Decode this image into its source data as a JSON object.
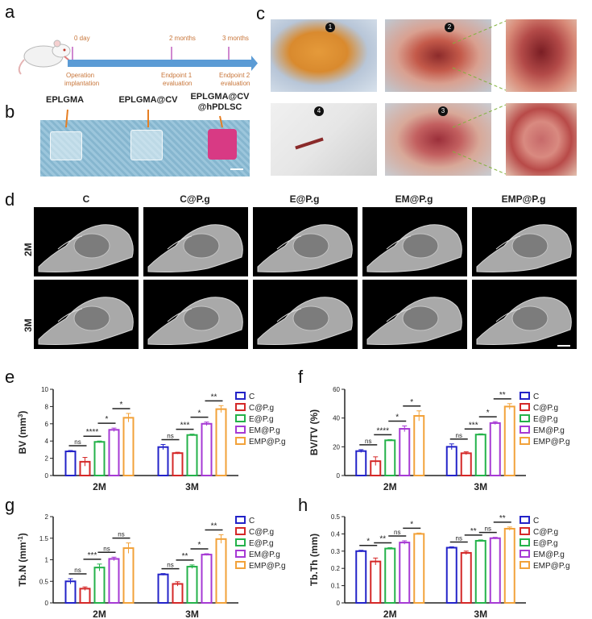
{
  "panel_letters": [
    "a",
    "b",
    "c",
    "d",
    "e",
    "f",
    "g",
    "h"
  ],
  "timeline": {
    "ticks": [
      {
        "label": "0 day",
        "events": [
          "Operation",
          "implantation"
        ]
      },
      {
        "label": "2 months",
        "events": [
          "Endpoint 1",
          "evaluation"
        ]
      },
      {
        "label": "3 months",
        "events": [
          "Endpoint 2",
          "evaluation"
        ]
      }
    ],
    "color": "#5b9bd5",
    "text_color": "#c8763a"
  },
  "hydrogels": {
    "labels": [
      "EPLGMA",
      "EPLGMA@CV",
      "EPLGMA@CV\n@hPDLSC"
    ]
  },
  "surgery_photos": {
    "markers": [
      "1",
      "2",
      "3",
      "4"
    ]
  },
  "microct": {
    "columns": [
      "C",
      "C@P.g",
      "E@P.g",
      "EM@P.g",
      "EMP@P.g"
    ],
    "rows": [
      "2M",
      "3M"
    ]
  },
  "legend": {
    "entries": [
      "C",
      "C@P.g",
      "E@P.g",
      "EM@P.g",
      "EMP@P.g"
    ],
    "colors": [
      "#2323c8",
      "#d42828",
      "#24b24a",
      "#a63ad4",
      "#f2a23a"
    ]
  },
  "chart_data": [
    {
      "id": "e",
      "type": "bar",
      "categories": [
        "2M",
        "3M"
      ],
      "series": [
        {
          "name": "C",
          "values": [
            2.8,
            3.3
          ],
          "errors": [
            0.1,
            0.3
          ]
        },
        {
          "name": "C@P.g",
          "values": [
            1.6,
            2.6
          ],
          "errors": [
            0.5,
            0.1
          ]
        },
        {
          "name": "E@P.g",
          "values": [
            3.9,
            4.7
          ],
          "errors": [
            0.1,
            0.1
          ]
        },
        {
          "name": "EM@P.g",
          "values": [
            5.3,
            6.0
          ],
          "errors": [
            0.2,
            0.2
          ]
        },
        {
          "name": "EMP@P.g",
          "values": [
            6.7,
            7.7
          ],
          "errors": [
            0.5,
            0.4
          ]
        }
      ],
      "ylabel_main": "BV (mm",
      "ylabel_sup": "3",
      "ylabel_tail": ")",
      "ylim": [
        0,
        10
      ],
      "yticks": [
        0,
        2,
        4,
        6,
        8,
        10
      ],
      "significance": [
        {
          "group": 0,
          "from": 0,
          "to": 1,
          "label": "ns"
        },
        {
          "group": 0,
          "from": 1,
          "to": 2,
          "label": "****"
        },
        {
          "group": 0,
          "from": 2,
          "to": 3,
          "label": "*"
        },
        {
          "group": 0,
          "from": 3,
          "to": 4,
          "label": "*"
        },
        {
          "group": 1,
          "from": 0,
          "to": 1,
          "label": "ns"
        },
        {
          "group": 1,
          "from": 1,
          "to": 2,
          "label": "***"
        },
        {
          "group": 1,
          "from": 2,
          "to": 3,
          "label": "*"
        },
        {
          "group": 1,
          "from": 3,
          "to": 4,
          "label": "**"
        }
      ]
    },
    {
      "id": "f",
      "type": "bar",
      "categories": [
        "2M",
        "3M"
      ],
      "series": [
        {
          "name": "C",
          "values": [
            17,
            20
          ],
          "errors": [
            1,
            2
          ]
        },
        {
          "name": "C@P.g",
          "values": [
            10,
            15.5
          ],
          "errors": [
            3,
            1
          ]
        },
        {
          "name": "E@P.g",
          "values": [
            24.5,
            28.5
          ],
          "errors": [
            0.5,
            0.5
          ]
        },
        {
          "name": "EM@P.g",
          "values": [
            32.5,
            36.5
          ],
          "errors": [
            2,
            1
          ]
        },
        {
          "name": "EMP@P.g",
          "values": [
            41.5,
            48
          ],
          "errors": [
            3.5,
            2
          ]
        }
      ],
      "ylabel_main": "BV/TV (%)",
      "ylabel_sup": "",
      "ylabel_tail": "",
      "ylim": [
        0,
        60
      ],
      "yticks": [
        0,
        20,
        40,
        60
      ],
      "significance": [
        {
          "group": 0,
          "from": 0,
          "to": 1,
          "label": "ns"
        },
        {
          "group": 0,
          "from": 1,
          "to": 2,
          "label": "****"
        },
        {
          "group": 0,
          "from": 2,
          "to": 3,
          "label": "*"
        },
        {
          "group": 0,
          "from": 3,
          "to": 4,
          "label": "*"
        },
        {
          "group": 1,
          "from": 0,
          "to": 1,
          "label": "ns"
        },
        {
          "group": 1,
          "from": 1,
          "to": 2,
          "label": "***"
        },
        {
          "group": 1,
          "from": 2,
          "to": 3,
          "label": "*"
        },
        {
          "group": 1,
          "from": 3,
          "to": 4,
          "label": "**"
        }
      ]
    },
    {
      "id": "g",
      "type": "bar",
      "categories": [
        "2M",
        "3M"
      ],
      "series": [
        {
          "name": "C",
          "values": [
            0.5,
            0.66
          ],
          "errors": [
            0.06,
            0.02
          ]
        },
        {
          "name": "C@P.g",
          "values": [
            0.33,
            0.44
          ],
          "errors": [
            0.04,
            0.05
          ]
        },
        {
          "name": "E@P.g",
          "values": [
            0.82,
            0.84
          ],
          "errors": [
            0.08,
            0.04
          ]
        },
        {
          "name": "EM@P.g",
          "values": [
            1.02,
            1.12
          ],
          "errors": [
            0.04,
            0.02
          ]
        },
        {
          "name": "EMP@P.g",
          "values": [
            1.27,
            1.48
          ],
          "errors": [
            0.12,
            0.1
          ]
        }
      ],
      "ylabel_main": "Tb.N (mm",
      "ylabel_sup": "-1",
      "ylabel_tail": ")",
      "ylim": [
        0,
        2.0
      ],
      "yticks": [
        0.0,
        0.5,
        1.0,
        1.5,
        2.0
      ],
      "significance": [
        {
          "group": 0,
          "from": 0,
          "to": 1,
          "label": "ns"
        },
        {
          "group": 0,
          "from": 1,
          "to": 2,
          "label": "***"
        },
        {
          "group": 0,
          "from": 2,
          "to": 3,
          "label": "ns"
        },
        {
          "group": 0,
          "from": 3,
          "to": 4,
          "label": "ns"
        },
        {
          "group": 1,
          "from": 0,
          "to": 1,
          "label": "ns"
        },
        {
          "group": 1,
          "from": 1,
          "to": 2,
          "label": "**"
        },
        {
          "group": 1,
          "from": 2,
          "to": 3,
          "label": "*"
        },
        {
          "group": 1,
          "from": 3,
          "to": 4,
          "label": "**"
        }
      ]
    },
    {
      "id": "h",
      "type": "bar",
      "categories": [
        "2M",
        "3M"
      ],
      "series": [
        {
          "name": "C",
          "values": [
            0.3,
            0.32
          ],
          "errors": [
            0.005,
            0.005
          ]
        },
        {
          "name": "C@P.g",
          "values": [
            0.24,
            0.29
          ],
          "errors": [
            0.02,
            0.01
          ]
        },
        {
          "name": "E@P.g",
          "values": [
            0.315,
            0.36
          ],
          "errors": [
            0.005,
            0.005
          ]
        },
        {
          "name": "EM@P.g",
          "values": [
            0.35,
            0.375
          ],
          "errors": [
            0.01,
            0.005
          ]
        },
        {
          "name": "EMP@P.g",
          "values": [
            0.4,
            0.43
          ],
          "errors": [
            0.005,
            0.01
          ]
        }
      ],
      "ylabel_main": "Tb.Th (mm)",
      "ylabel_sup": "",
      "ylabel_tail": "",
      "ylim": [
        0,
        0.5
      ],
      "yticks": [
        0.0,
        0.1,
        0.2,
        0.3,
        0.4,
        0.5
      ],
      "significance": [
        {
          "group": 0,
          "from": 0,
          "to": 1,
          "label": "*"
        },
        {
          "group": 0,
          "from": 1,
          "to": 2,
          "label": "**"
        },
        {
          "group": 0,
          "from": 2,
          "to": 3,
          "label": "ns"
        },
        {
          "group": 0,
          "from": 3,
          "to": 4,
          "label": "*"
        },
        {
          "group": 1,
          "from": 0,
          "to": 1,
          "label": "ns"
        },
        {
          "group": 1,
          "from": 1,
          "to": 2,
          "label": "**"
        },
        {
          "group": 1,
          "from": 2,
          "to": 3,
          "label": "ns"
        },
        {
          "group": 1,
          "from": 3,
          "to": 4,
          "label": "**"
        }
      ]
    }
  ]
}
